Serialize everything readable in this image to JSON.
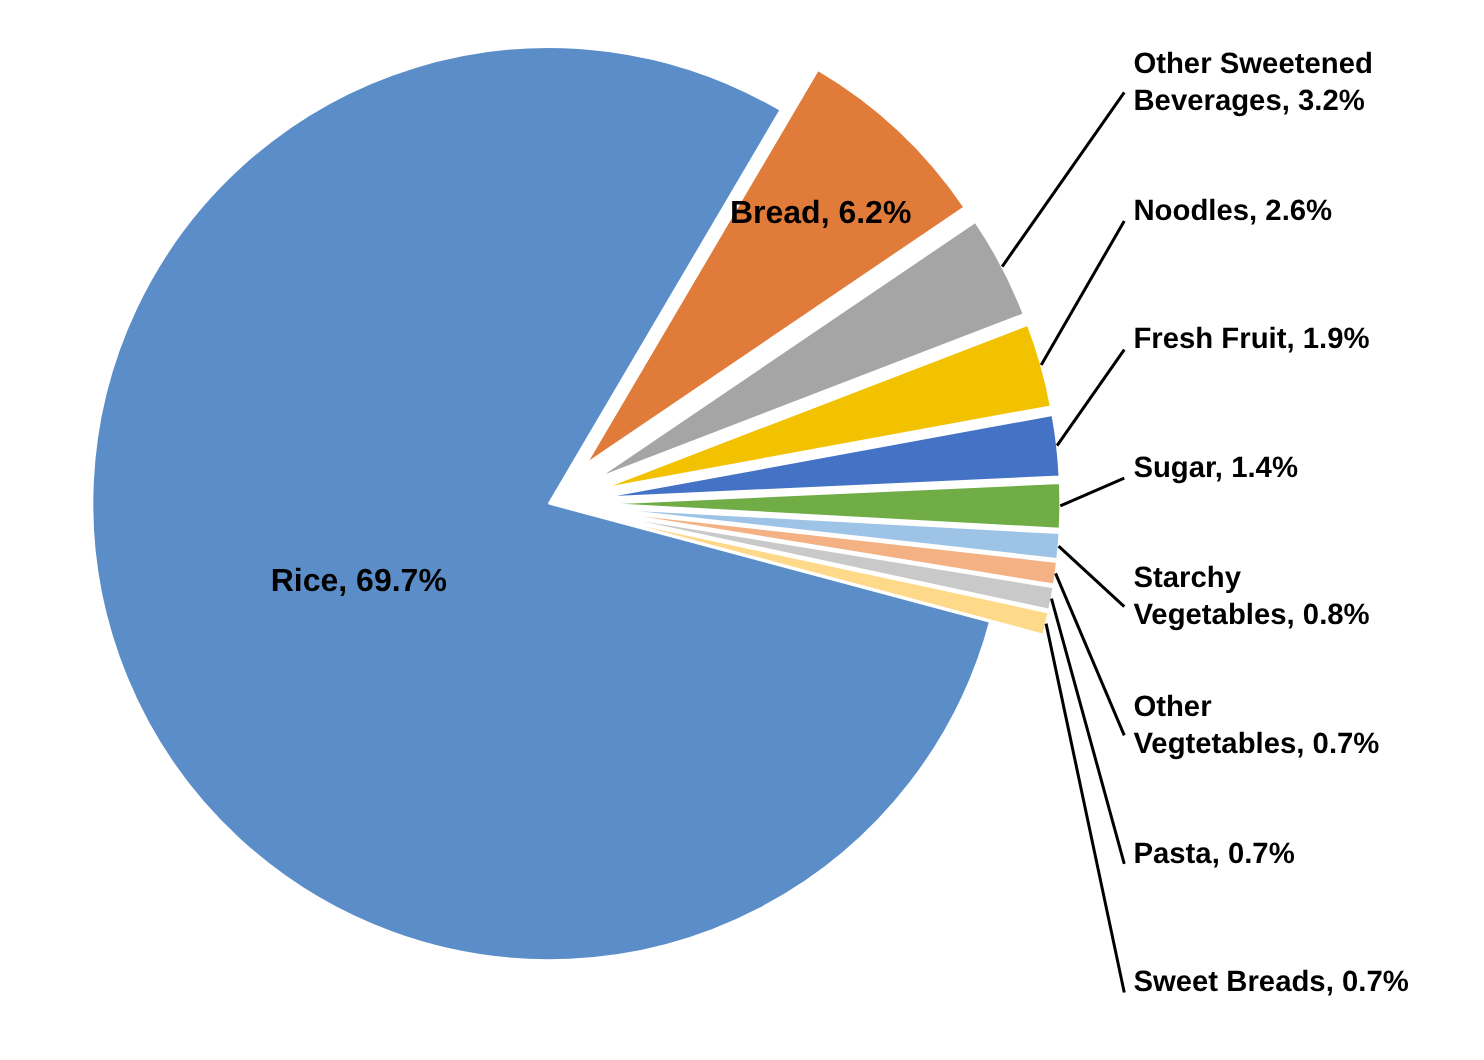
{
  "chart_data": {
    "type": "pie",
    "categories": [
      "Rice",
      "Bread",
      "Other Sweetened Beverages",
      "Noodles",
      "Fresh Fruit",
      "Sugar",
      "Starchy Vegetables",
      "Other Vegtetables",
      "Pasta",
      "Sweet Breads"
    ],
    "values": [
      69.7,
      6.2,
      3.2,
      2.6,
      1.9,
      1.4,
      0.8,
      0.7,
      0.7,
      0.7
    ],
    "value_labels": [
      "69.7%",
      "6.2%",
      "3.2%",
      "2.6%",
      "1.9%",
      "1.4%",
      "0.8%",
      "0.7%",
      "0.7%",
      "0.7%"
    ],
    "colors": [
      "#5b8ec9",
      "#e07b39",
      "#a5a5a5",
      "#f2c200",
      "#4472c4",
      "#70ad47",
      "#9dc3e6",
      "#f4b183",
      "#c9c9c9",
      "#ffd98a"
    ]
  }
}
